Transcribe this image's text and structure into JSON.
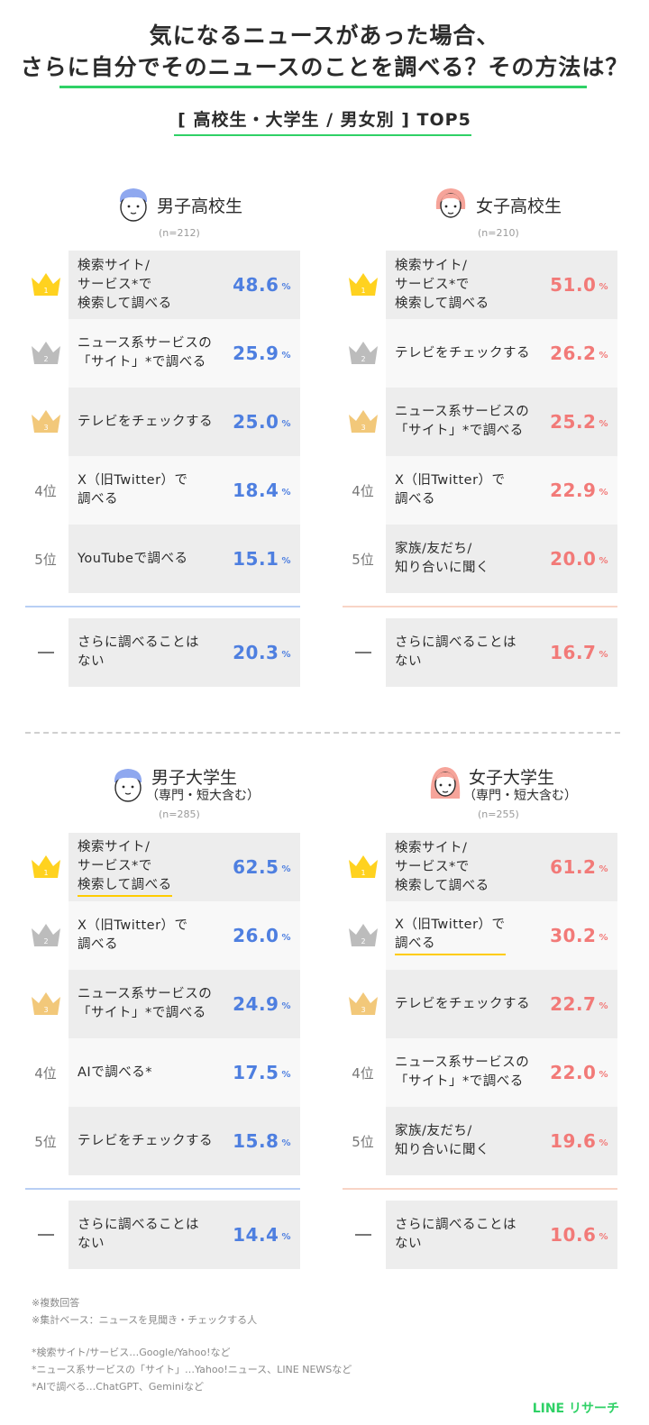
{
  "header": {
    "title_line1": "気になるニュースがあった場合、",
    "title_line2": "さらに自分でそのニュースのことを調べる？その方法は？",
    "subtitle": "[ 高校生・大学生 / 男女別 ] TOP5"
  },
  "colors": {
    "accent_green": "#2fd166",
    "male_blue": "#4e7fe0",
    "female_pink": "#f27a78",
    "gold": "#ffd21f",
    "silver": "#bcbcbc",
    "bronze": "#f2c87a"
  },
  "icons": [
    "crown-gold-icon",
    "crown-silver-icon",
    "crown-bronze-icon",
    "boy-avatar-icon",
    "girl-avatar-icon"
  ],
  "rank_labels": {
    "r4": "4位",
    "r5": "5位",
    "none": "—"
  },
  "percent_sign": "%",
  "chart_data": [
    {
      "type": "table",
      "title": "男子高校生",
      "sample": "(n=212)",
      "items": [
        {
          "rank": 1,
          "label": "検索サイト/\nサービス*で\n検索して調べる",
          "value": 48.6
        },
        {
          "rank": 2,
          "label": "ニュース系サービスの\n「サイト」*で調べる",
          "value": 25.9
        },
        {
          "rank": 3,
          "label": "テレビをチェックする",
          "value": 25.0
        },
        {
          "rank": 4,
          "label": "X（旧Twitter）で\n調べる",
          "value": 18.4
        },
        {
          "rank": 5,
          "label": "YouTubeで調べる",
          "value": 15.1
        }
      ],
      "none": {
        "label": "さらに調べることは\nない",
        "value": 20.3
      }
    },
    {
      "type": "table",
      "title": "女子高校生",
      "sample": "(n=210)",
      "items": [
        {
          "rank": 1,
          "label": "検索サイト/\nサービス*で\n検索して調べる",
          "value": 51.0
        },
        {
          "rank": 2,
          "label": "テレビをチェックする",
          "value": 26.2
        },
        {
          "rank": 3,
          "label": "ニュース系サービスの\n「サイト」*で調べる",
          "value": 25.2
        },
        {
          "rank": 4,
          "label": "X（旧Twitter）で\n調べる",
          "value": 22.9
        },
        {
          "rank": 5,
          "label": "家族/友だち/\n知り合いに聞く",
          "value": 20.0
        }
      ],
      "none": {
        "label": "さらに調べることは\nない",
        "value": 16.7
      }
    },
    {
      "type": "table",
      "title": "男子大学生",
      "subtitle": "（専門・短大含む）",
      "sample": "(n=285)",
      "items": [
        {
          "rank": 1,
          "label": "検索サイト/\nサービス*で\n検索して調べる",
          "value": 62.5,
          "highlight": true
        },
        {
          "rank": 2,
          "label": "X（旧Twitter）で\n調べる",
          "value": 26.0
        },
        {
          "rank": 3,
          "label": "ニュース系サービスの\n「サイト」*で調べる",
          "value": 24.9
        },
        {
          "rank": 4,
          "label": "AIで調べる*",
          "value": 17.5
        },
        {
          "rank": 5,
          "label": "テレビをチェックする",
          "value": 15.8
        }
      ],
      "none": {
        "label": "さらに調べることは\nない",
        "value": 14.4
      }
    },
    {
      "type": "table",
      "title": "女子大学生",
      "subtitle": "（専門・短大含む）",
      "sample": "(n=255)",
      "items": [
        {
          "rank": 1,
          "label": "検索サイト/\nサービス*で\n検索して調べる",
          "value": 61.2
        },
        {
          "rank": 2,
          "label": "X（旧Twitter）で\n調べる",
          "value": 30.2,
          "highlight": true
        },
        {
          "rank": 3,
          "label": "テレビをチェックする",
          "value": 22.7
        },
        {
          "rank": 4,
          "label": "ニュース系サービスの\n「サイト」*で調べる",
          "value": 22.0
        },
        {
          "rank": 5,
          "label": "家族/友だち/\n知り合いに聞く",
          "value": 19.6
        }
      ],
      "none": {
        "label": "さらに調べることは\nない",
        "value": 10.6
      }
    }
  ],
  "footnotes": [
    "※複数回答",
    "※集計ベース：ニュースを見聞き・チェックする人",
    "",
    "*検索サイト/サービス…Google/Yahoo!など",
    "*ニュース系サービスの「サイト」…Yahoo!ニュース、LINE NEWSなど",
    "*AIで調べる…ChatGPT、Geminiなど"
  ],
  "logo": "LINE リサーチ"
}
